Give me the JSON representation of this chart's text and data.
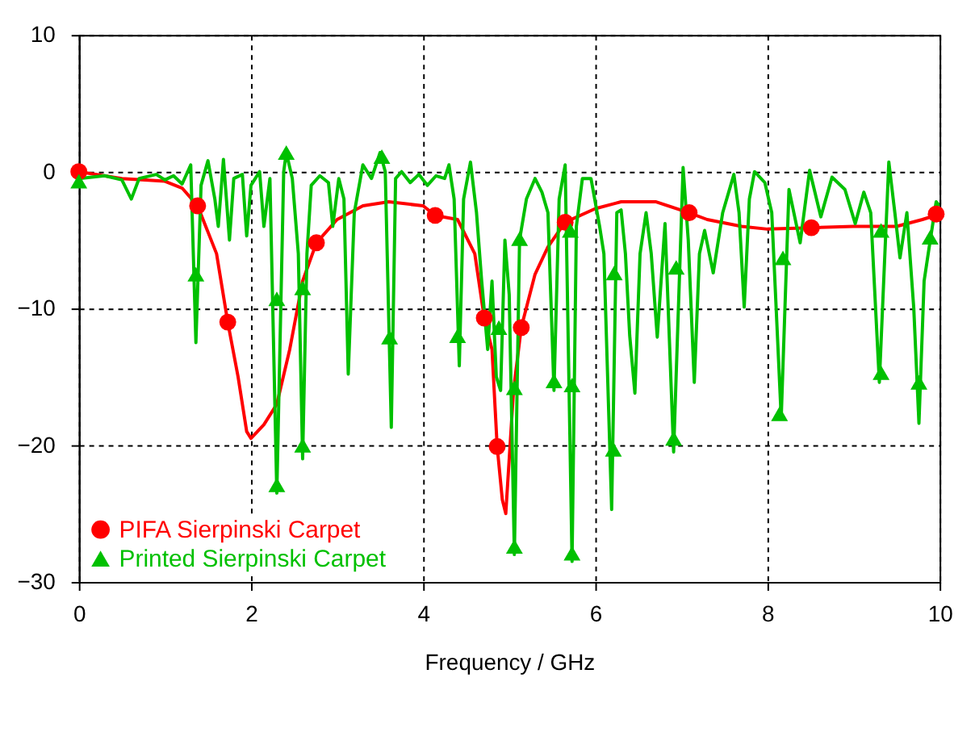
{
  "chart_data": {
    "type": "line",
    "xlabel": "Frequency / GHz",
    "xlim": [
      0,
      10
    ],
    "ylim": [
      -30,
      10
    ],
    "xticks": [
      0,
      2,
      4,
      6,
      8,
      10
    ],
    "yticks": [
      -30,
      -20,
      -10,
      0,
      10
    ],
    "grid": true,
    "legend": "bottom left",
    "series": [
      {
        "color": "#ff0000",
        "marker": "none",
        "x": [
          0,
          0.5,
          1.0,
          1.2,
          1.38,
          1.6,
          1.73,
          1.85,
          1.95,
          2.0,
          2.15,
          2.3,
          2.45,
          2.6,
          2.76,
          3.0,
          3.3,
          3.6,
          4.0,
          4.14,
          4.4,
          4.6,
          4.71,
          4.8,
          4.86,
          4.92,
          4.96,
          5.0,
          5.05,
          5.14,
          5.3,
          5.45,
          5.65,
          6.0,
          6.3,
          6.7,
          7.09,
          7.3,
          7.7,
          8.0,
          8.51,
          9.0,
          9.5,
          9.8,
          10
        ],
        "values": [
          0,
          -0.5,
          -0.7,
          -1.2,
          -2.5,
          -6,
          -11,
          -15,
          -19,
          -19.5,
          -18.5,
          -17,
          -13,
          -8,
          -5.2,
          -3.5,
          -2.5,
          -2.2,
          -2.5,
          -3.2,
          -3.5,
          -6,
          -10.7,
          -13,
          -20.1,
          -24,
          -25,
          -21,
          -16,
          -11.4,
          -7.5,
          -5.5,
          -3.7,
          -2.7,
          -2.2,
          -2.2,
          -3,
          -3.5,
          -4,
          -4.2,
          -4.1,
          -4,
          -4,
          -3.5,
          -3.1
        ]
      },
      {
        "type": "scatter",
        "name": "PIFA Sierpinski Carpet",
        "color": "#ff0000",
        "marker": "circle",
        "x": [
          0,
          1.38,
          1.73,
          2.76,
          4.14,
          4.71,
          4.86,
          5.14,
          5.65,
          7.09,
          8.51,
          9.96
        ],
        "values": [
          0,
          -2.5,
          -11,
          -5.2,
          -3.2,
          -10.7,
          -20.1,
          -11.4,
          -3.7,
          -3,
          -4.1,
          -3.1
        ]
      },
      {
        "color": "#00c000",
        "marker": "none",
        "x": [
          0,
          0.3,
          0.5,
          0.61,
          0.7,
          0.9,
          1.0,
          1.1,
          1.2,
          1.3,
          1.36,
          1.42,
          1.5,
          1.58,
          1.62,
          1.68,
          1.75,
          1.8,
          1.9,
          1.95,
          2.0,
          2.05,
          2.1,
          2.15,
          2.22,
          2.3,
          2.38,
          2.41,
          2.48,
          2.55,
          2.6,
          2.65,
          2.7,
          2.8,
          2.9,
          2.95,
          3.02,
          3.08,
          3.13,
          3.2,
          3.3,
          3.4,
          3.5,
          3.56,
          3.63,
          3.68,
          3.75,
          3.85,
          3.95,
          4.05,
          4.15,
          4.25,
          4.3,
          4.36,
          4.42,
          4.47,
          4.55,
          4.62,
          4.68,
          4.75,
          4.8,
          4.85,
          4.9,
          4.95,
          5.0,
          5.06,
          5.12,
          5.2,
          5.3,
          5.38,
          5.45,
          5.52,
          5.58,
          5.65,
          5.73,
          5.78,
          5.85,
          5.95,
          6.05,
          6.1,
          6.19,
          6.25,
          6.3,
          6.35,
          6.4,
          6.46,
          6.52,
          6.59,
          6.65,
          6.72,
          6.81,
          6.91,
          7.02,
          7.08,
          7.15,
          7.21,
          7.27,
          7.37,
          7.48,
          7.61,
          7.67,
          7.73,
          7.79,
          7.85,
          7.97,
          8.05,
          8.16,
          8.25,
          8.38,
          8.49,
          8.62,
          8.75,
          8.9,
          9.02,
          9.12,
          9.2,
          9.3,
          9.41,
          9.48,
          9.54,
          9.62,
          9.7,
          9.76,
          9.82,
          9.87,
          9.96,
          10
        ],
        "values": [
          -0.5,
          -0.3,
          -0.6,
          -2.0,
          -0.5,
          -0.2,
          -0.6,
          -0.3,
          -0.9,
          0.5,
          -12.5,
          -1,
          0.8,
          -2,
          -4,
          0.9,
          -5,
          -0.5,
          -0.2,
          -4.7,
          -1,
          -0.5,
          0,
          -4,
          -0.5,
          -23.5,
          0,
          1.4,
          -0.5,
          -6,
          -21,
          -6,
          -1,
          -0.3,
          -0.8,
          -4,
          -0.5,
          -2,
          -14.8,
          -3,
          0.5,
          -0.5,
          1.4,
          0,
          -18.7,
          -0.5,
          0,
          -0.8,
          -0.2,
          -1,
          -0.3,
          -0.5,
          0.5,
          -2,
          -14.2,
          -2,
          0.7,
          -3,
          -8,
          -13,
          -8,
          -15,
          -16,
          -5,
          -9,
          -28,
          -5,
          -2,
          -0.5,
          -1.5,
          -3,
          -16,
          -2,
          0.5,
          -28.5,
          -4,
          -0.5,
          -0.5,
          -4,
          -6,
          -24.7,
          -3,
          -2.8,
          -6,
          -12,
          -16.2,
          -6,
          -3,
          -6,
          -12.1,
          -3.8,
          -20.5,
          0.3,
          -5,
          -15.4,
          -6,
          -4.3,
          -7.4,
          -3,
          -0.2,
          -3,
          -9.9,
          -2,
          0,
          -0.8,
          -3,
          -18,
          -1.3,
          -5.2,
          0.1,
          -3.3,
          -0.4,
          -1.3,
          -3.8,
          -1.5,
          -3,
          -15.4,
          0.7,
          -3,
          -6.3,
          -3,
          -10,
          -18.4,
          -8,
          -5.9,
          -2.2,
          -2.5
        ]
      },
      {
        "type": "scatter",
        "name": "Printed Sierpinski Carpet",
        "color": "#00c000",
        "marker": "triangle",
        "x": [
          0,
          1.36,
          2.3,
          2.3,
          2.41,
          2.6,
          2.6,
          3.52,
          3.61,
          4.4,
          4.88,
          5.06,
          5.06,
          5.12,
          5.52,
          5.73,
          5.73,
          5.71,
          6.22,
          6.21,
          6.94,
          6.91,
          8.18,
          8.14,
          9.32,
          9.32,
          9.76,
          9.89
        ],
        "values": [
          -0.7,
          -7.5,
          -9.3,
          -22.9,
          1.4,
          -8.5,
          -20,
          1.1,
          -12.1,
          -12,
          -11.4,
          -15.8,
          -27.4,
          -4.9,
          -15.3,
          -15.6,
          -27.9,
          -4.3,
          -7.4,
          -20.3,
          -7,
          -19.5,
          -6.3,
          -17.7,
          -4.3,
          -14.7,
          -15.4,
          -4.8
        ]
      }
    ]
  }
}
